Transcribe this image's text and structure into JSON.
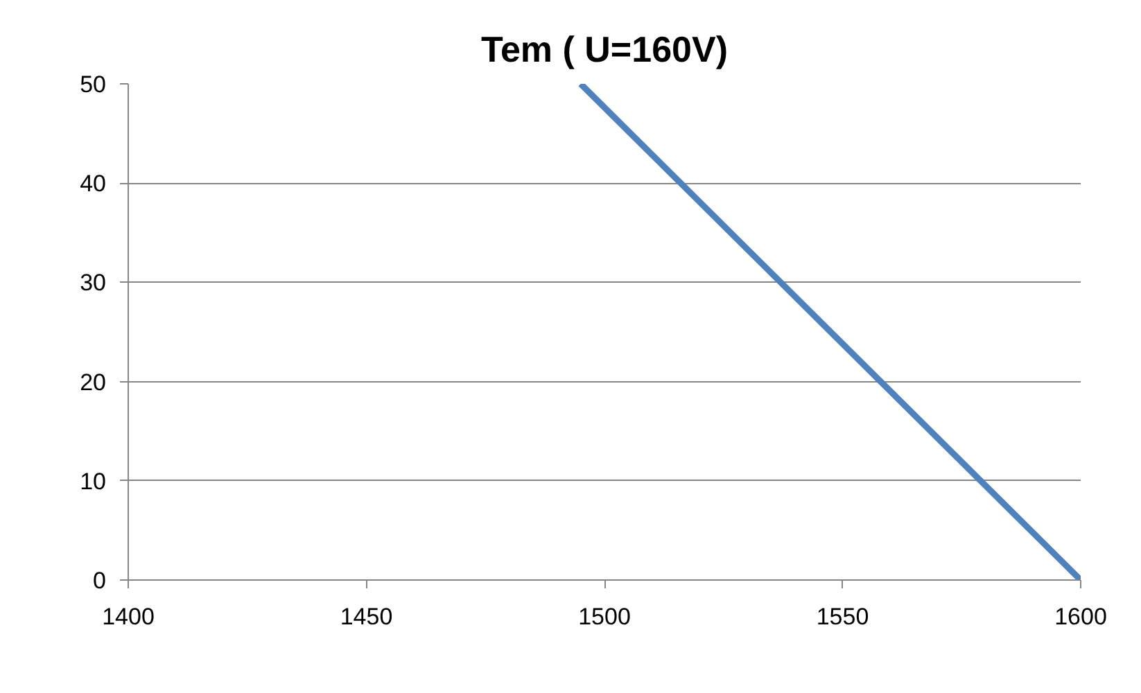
{
  "chart_data": {
    "type": "line",
    "title": "Tem ( U=160V)",
    "x": [
      1495,
      1600
    ],
    "series": [
      {
        "color": "#4f81bd",
        "values": [
          50,
          0
        ]
      }
    ],
    "xlim": [
      1400,
      1600
    ],
    "xticks": [
      1400,
      1450,
      1500,
      1550,
      1600
    ],
    "ylim": [
      0,
      50
    ],
    "yticks": [
      0,
      10,
      20,
      30,
      40,
      50
    ],
    "grid": "y",
    "line_style": "solid"
  }
}
